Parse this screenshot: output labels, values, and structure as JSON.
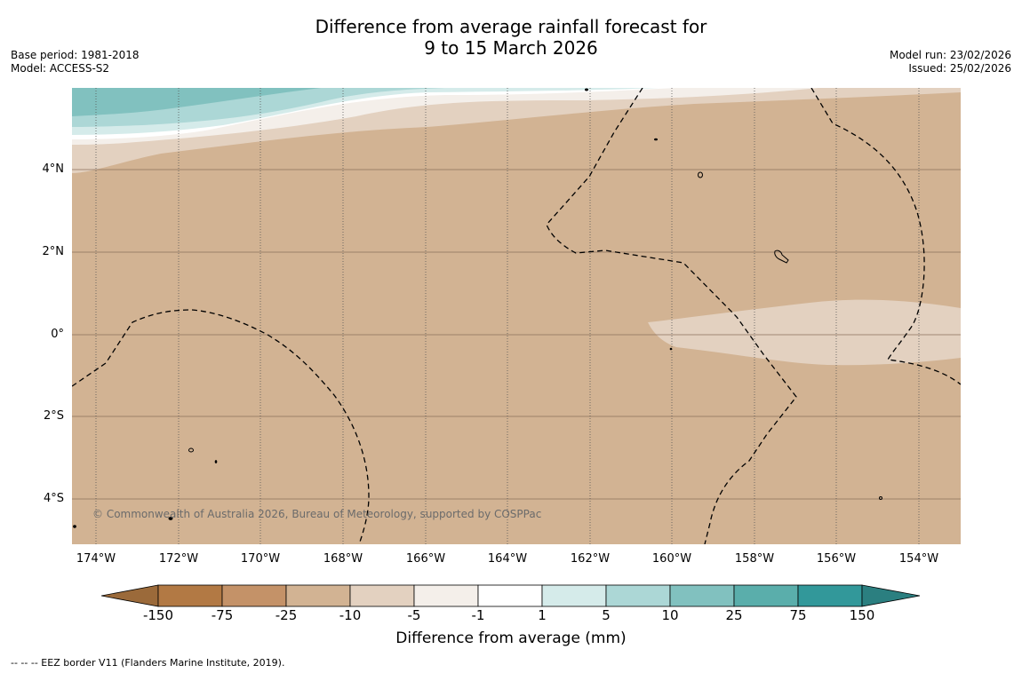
{
  "header": {
    "title_line1": "Difference from average rainfall forecast for",
    "title_line2": "9 to 15 March 2026",
    "base_period": "Base period: 1981-2018",
    "model": "Model: ACCESS-S2",
    "model_run": "Model run: 23/02/2026",
    "issued": "Issued: 25/02/2026"
  },
  "map": {
    "lat_labels": [
      "4°N",
      "2°N",
      "0°",
      "2°S",
      "4°S"
    ],
    "lon_labels": [
      "174°W",
      "172°W",
      "170°W",
      "168°W",
      "166°W",
      "164°W",
      "162°W",
      "160°W",
      "158°W",
      "156°W",
      "154°W"
    ],
    "copyright": "© Commonwealth of Australia 2026, Bureau of Meteorology, supported by COSPPac"
  },
  "colorbar": {
    "ticks": [
      "-150",
      "-75",
      "-25",
      "-10",
      "-5",
      "-1",
      "1",
      "5",
      "10",
      "25",
      "75",
      "150"
    ],
    "colors": [
      "#9b6a3a",
      "#b27944",
      "#c49268",
      "#d2b393",
      "#e3d1c0",
      "#f4efea",
      "#ffffff",
      "#d5ebea",
      "#acd7d6",
      "#81c1bf",
      "#5aaeab",
      "#32989a",
      "#2b7f80"
    ],
    "label": "Difference from average (mm)"
  },
  "footer": {
    "eez_note": "--  --  -- EEZ border V11 (Flanders Marine Institute, 2019)."
  }
}
